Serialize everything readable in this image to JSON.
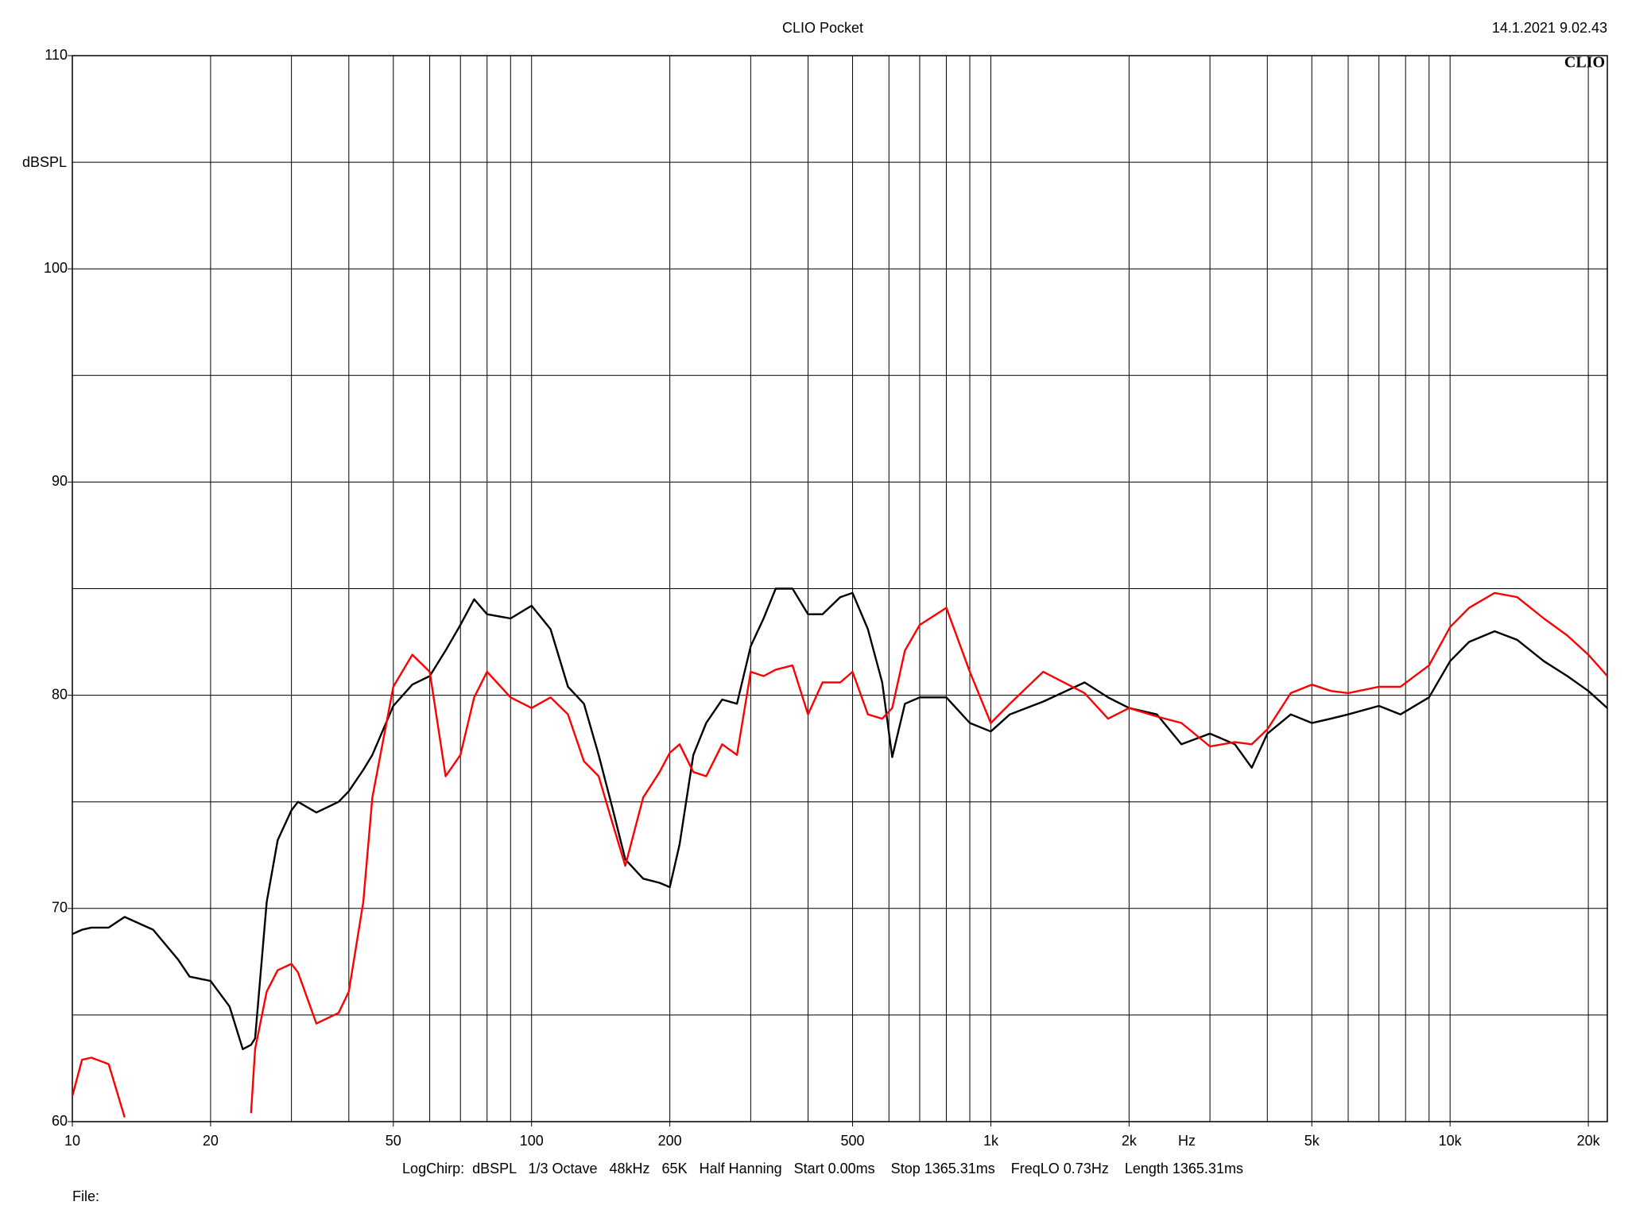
{
  "chart_data": {
    "type": "line",
    "title": "CLIO Pocket",
    "timestamp": "14.1.2021 9.02.43",
    "logo": "CLIO",
    "ylabel": "dBSPL",
    "xlabel": "Hz",
    "footer": "LogChirp:  dBSPL   1/3 Octave   48kHz   65K   Half Hanning   Start 0.00ms    Stop 1365.31ms    FreqLO 0.73Hz    Length 1365.31ms",
    "file_label": "File:",
    "xscale": "log",
    "grid": true,
    "xlim": [
      10,
      22000
    ],
    "ylim": [
      60,
      110
    ],
    "xticks": [
      10,
      20,
      50,
      100,
      200,
      500,
      {
        "value": 1000,
        "label": "1k"
      },
      {
        "value": 2000,
        "label": "2k"
      },
      {
        "value": 5000,
        "label": "5k"
      },
      {
        "value": 10000,
        "label": "10k"
      },
      {
        "value": 20000,
        "label": "20k"
      }
    ],
    "xgrid": [
      10,
      20,
      30,
      40,
      50,
      60,
      70,
      80,
      90,
      100,
      200,
      300,
      400,
      500,
      600,
      700,
      800,
      900,
      1000,
      2000,
      3000,
      4000,
      5000,
      6000,
      7000,
      8000,
      9000,
      10000,
      20000
    ],
    "yticks": [
      60,
      70,
      80,
      90,
      100,
      110
    ],
    "ygrid": [
      60,
      65,
      70,
      75,
      80,
      85,
      90,
      95,
      100,
      105,
      110
    ],
    "x": [
      10,
      10.5,
      11,
      12,
      13,
      15,
      17,
      18,
      20,
      22,
      23.5,
      24.5,
      25,
      26.5,
      28,
      30,
      31,
      34,
      38,
      40,
      43,
      45,
      50,
      55,
      60,
      65,
      70,
      75,
      80,
      90,
      100,
      110,
      120,
      130,
      140,
      150,
      160,
      175,
      190,
      200,
      210,
      225,
      240,
      260,
      280,
      300,
      320,
      340,
      370,
      400,
      430,
      470,
      500,
      540,
      580,
      610,
      650,
      700,
      800,
      900,
      1000,
      1100,
      1300,
      1600,
      1800,
      2000,
      2300,
      2600,
      3000,
      3400,
      3700,
      4000,
      4500,
      5000,
      5500,
      6000,
      7000,
      7800,
      9000,
      10000,
      11000,
      12500,
      14000,
      16000,
      18000,
      20000,
      22000
    ],
    "series": [
      {
        "color": "#000000",
        "values": [
          68.8,
          69.0,
          69.1,
          69.1,
          69.6,
          69.0,
          67.6,
          66.8,
          66.6,
          65.4,
          63.4,
          63.6,
          63.9,
          70.3,
          73.2,
          74.6,
          75.0,
          74.5,
          75.0,
          75.5,
          76.5,
          77.2,
          79.5,
          80.5,
          80.9,
          82.1,
          83.3,
          84.5,
          83.8,
          83.6,
          84.2,
          83.1,
          80.4,
          79.6,
          77.2,
          74.7,
          72.3,
          71.4,
          71.2,
          71.0,
          73.0,
          77.2,
          78.7,
          79.8,
          79.6,
          82.3,
          83.6,
          85.0,
          85.0,
          83.8,
          83.8,
          84.6,
          84.8,
          83.1,
          80.6,
          77.1,
          79.6,
          79.9,
          79.9,
          78.7,
          78.3,
          79.1,
          79.7,
          80.6,
          79.9,
          79.4,
          79.1,
          77.7,
          78.2,
          77.7,
          76.6,
          78.2,
          79.1,
          78.7,
          78.9,
          79.1,
          79.5,
          79.1,
          79.9,
          81.6,
          82.5,
          83.0,
          82.6,
          81.6,
          80.9,
          80.2,
          79.4
        ]
      },
      {
        "color": "#ff0000",
        "values": [
          61.2,
          62.9,
          63.0,
          62.7,
          60.2,
          null,
          null,
          null,
          null,
          null,
          null,
          60.4,
          63.4,
          66.1,
          67.1,
          67.4,
          67.0,
          64.6,
          65.1,
          66.1,
          70.3,
          75.2,
          80.4,
          81.9,
          81.1,
          76.2,
          77.2,
          79.9,
          81.1,
          79.9,
          79.4,
          79.9,
          79.1,
          76.9,
          76.2,
          74.0,
          72.0,
          75.2,
          76.4,
          77.3,
          77.7,
          76.4,
          76.2,
          77.7,
          77.2,
          81.1,
          80.9,
          81.2,
          81.4,
          79.1,
          80.6,
          80.6,
          81.1,
          79.1,
          78.9,
          79.4,
          82.1,
          83.3,
          84.1,
          81.1,
          78.7,
          79.6,
          81.1,
          80.1,
          78.9,
          79.4,
          79.0,
          78.7,
          77.6,
          77.8,
          77.7,
          78.4,
          80.1,
          80.5,
          80.2,
          80.1,
          80.4,
          80.4,
          81.4,
          83.2,
          84.1,
          84.8,
          84.6,
          83.6,
          82.8,
          81.9,
          80.9
        ]
      }
    ]
  }
}
